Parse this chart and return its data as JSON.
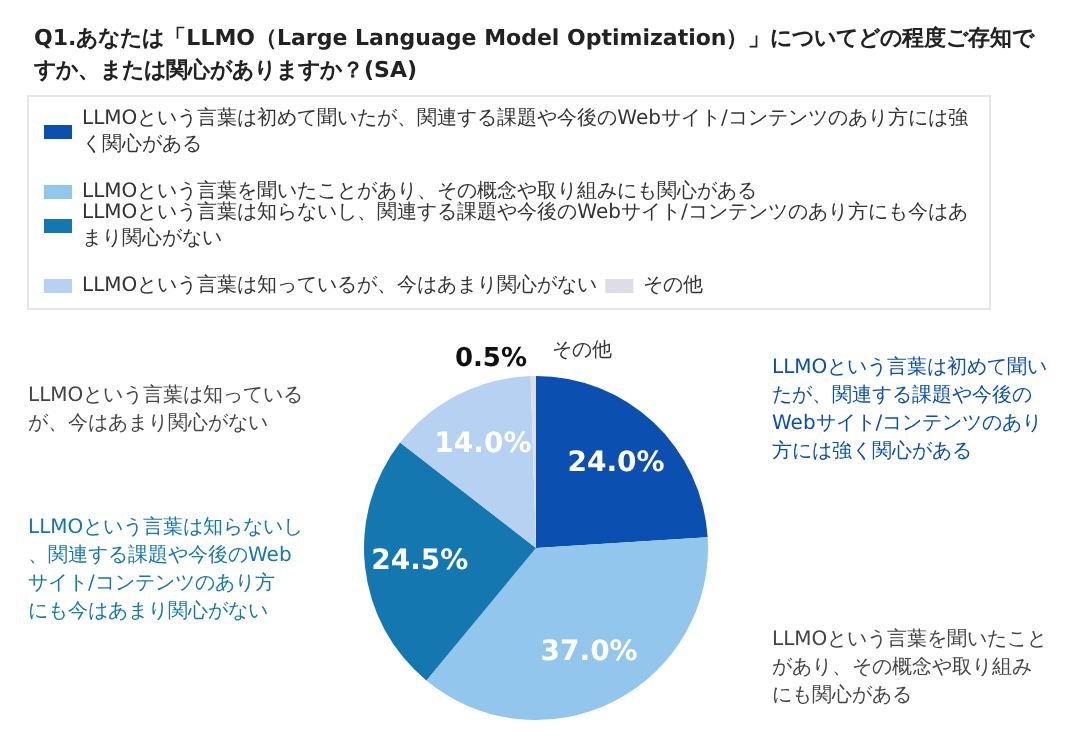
{
  "chart_data": {
    "type": "pie",
    "title": "Q1.あなたは「LLMO（Large Language Model Optimization）」についてどの程度ご存知ですか、または関心がありますか？(SA)",
    "categories": [
      "LLMOという言葉は初めて聞いたが、関連する課題や今後のWebサイト/コンテンツのあり方には強く関心がある",
      "LLMOという言葉を聞いたことがあり、その概念や取り組みにも関心がある",
      "LLMOという言葉は知らないし、関連する課題や今後のWebサイト/コンテンツのあり方にも今はあまり関心がない",
      "LLMOという言葉は知っているが、今はあまり関心がない",
      "その他"
    ],
    "values": [
      24.0,
      37.0,
      24.5,
      14.0,
      0.5
    ],
    "colors": [
      "#0b4fb0",
      "#92c6ec",
      "#1577b0",
      "#b6d1f1",
      "#dcdee6"
    ],
    "value_labels": [
      "24.0%",
      "37.0%",
      "24.5%",
      "14.0%",
      "0.5%"
    ],
    "legend": "top",
    "annotations": [
      "LLMOという言葉は初めて聞いたが、関連する課題や今後のWebサイト/コンテンツのあり方には強く関心がある",
      "LLMOという言葉を聞いたことがあり、その概念や取り組みにも関心がある",
      "LLMOという言葉は知らないし、関連する課題や今後のWebサイト/コンテンツのあり方にも今はあまり関心がない",
      "LLMOという言葉は知っているが、今はあまり関心がない",
      "その他"
    ]
  }
}
